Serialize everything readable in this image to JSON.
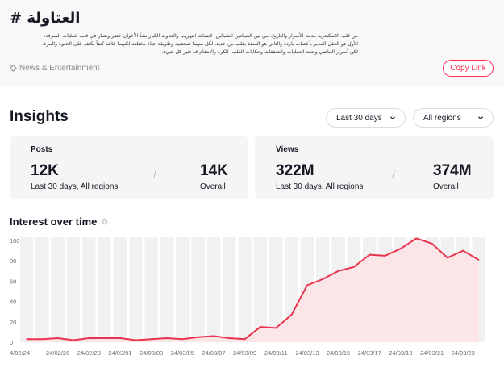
{
  "hashtag": {
    "title": "العتاولة #",
    "description_lines": [
      "من قلب الاسكندرية مدينة الأسرار والتاريخ، من بين الصيادين الشبالين، لانشات التهريب والعتاولة الكبار نشأ الأخوان خضر ونصار في قلب عمليات السرقة،",
      "الأول هو العقل المدبر بأعصاب باردة والثاني هو المنفذ بقلب من حديد، لكل منهما شخصية وطريقة حياة مختلفة لكنهما عاشا كتفاً بكتف على الحلوة والمرة،",
      "لكن أسرار الماضي وتعقد العمليات والصفقات وحكايات القلب، الكره والانتقام قد تغير كل شيء."
    ],
    "category": "News & Entertainment",
    "copy_label": "Copy Link"
  },
  "insights": {
    "title": "Insights",
    "period_filter": "Last 30 days",
    "region_filter": "All regions",
    "posts": {
      "label": "Posts",
      "period_value": "12K",
      "period_caption": "Last 30 days, All regions",
      "overall_value": "14K",
      "overall_caption": "Overall"
    },
    "views": {
      "label": "Views",
      "period_value": "322M",
      "period_caption": "Last 30 days, All regions",
      "overall_value": "374M",
      "overall_caption": "Overall"
    }
  },
  "colors": {
    "accent": "#fe2c55",
    "line": "#e8354f",
    "area": "#fde3e6",
    "bar": "#f1f1f2"
  },
  "chart_data": {
    "type": "area",
    "title": "Interest over time",
    "x_tick_labels": [
      "4/02/24",
      "24/02/26",
      "24/02/28",
      "24/03/01",
      "24/03/03",
      "24/03/05",
      "24/03/07",
      "24/03/09",
      "24/03/11",
      "24/03/13",
      "24/03/15",
      "24/03/17",
      "24/03/19",
      "24/03/21",
      "24/03/23"
    ],
    "y_ticks": [
      0,
      20,
      40,
      60,
      80,
      100
    ],
    "ylim": [
      0,
      100
    ],
    "x": [
      "02/24",
      "02/25",
      "02/26",
      "02/27",
      "02/28",
      "02/29",
      "03/01",
      "03/02",
      "03/03",
      "03/04",
      "03/05",
      "03/06",
      "03/07",
      "03/08",
      "03/09",
      "03/10",
      "03/11",
      "03/12",
      "03/13",
      "03/14",
      "03/15",
      "03/16",
      "03/17",
      "03/18",
      "03/19",
      "03/20",
      "03/21",
      "03/22",
      "03/23",
      "03/24"
    ],
    "values": [
      3,
      3,
      4,
      2,
      4,
      4,
      4,
      2,
      3,
      4,
      3,
      5,
      6,
      4,
      3,
      15,
      14,
      27,
      56,
      62,
      70,
      74,
      86,
      85,
      92,
      102,
      97,
      83,
      90,
      81
    ]
  }
}
